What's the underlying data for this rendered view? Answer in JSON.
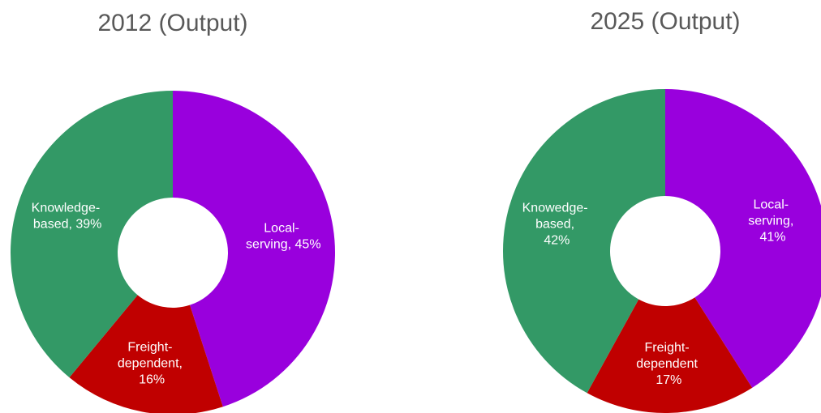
{
  "chart_data": [
    {
      "type": "pie",
      "title": "2012 (Output)",
      "donut": true,
      "categories": [
        "Local-serving",
        "Freight-dependent",
        "Knowledge-based"
      ],
      "values": [
        45,
        16,
        39
      ],
      "value_labels": [
        "Local-\nserving, 45%",
        "Freight-\ndependent,\n16%",
        "Knowledge-\nbased, 39%"
      ],
      "colors": [
        "#9900dd",
        "#c00000",
        "#339966"
      ]
    },
    {
      "type": "pie",
      "title": "2025 (Output)",
      "donut": true,
      "categories": [
        "Local-serving",
        "Freight-dependent",
        "Knowedge-based"
      ],
      "values": [
        41,
        17,
        42
      ],
      "value_labels": [
        "Local-\nserving,\n41%",
        "Freight-\ndependent\n17%",
        "Knowedge-\nbased,\n42%"
      ],
      "colors": [
        "#9900dd",
        "#c00000",
        "#339966"
      ]
    }
  ]
}
